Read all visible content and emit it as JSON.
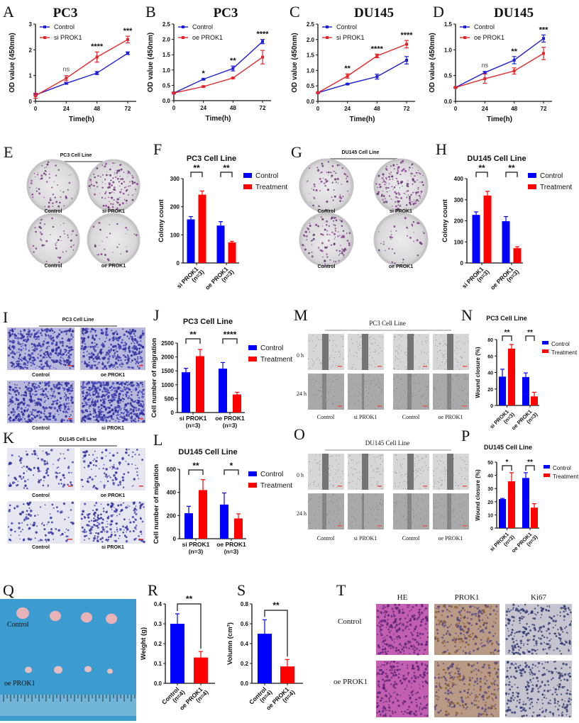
{
  "panel_letters": [
    "A",
    "B",
    "C",
    "D",
    "E",
    "F",
    "G",
    "H",
    "I",
    "J",
    "K",
    "L",
    "M",
    "N",
    "O",
    "P",
    "Q",
    "R",
    "S",
    "T"
  ],
  "colony_panels": [
    {
      "panel": "E",
      "title": "PC3 Cell Line",
      "labels": [
        "Control",
        "si PROK1",
        "Control",
        "oe PROK1"
      ]
    },
    {
      "panel": "G",
      "title": "DU145 Cell Line",
      "labels": [
        "Control",
        "si PROK1",
        "Control",
        "oe PROK1"
      ]
    }
  ],
  "transwell_panels": [
    {
      "panel": "I",
      "title": "PC3 Cell Line",
      "labels": [
        "Control",
        "oe PROK1",
        "Control",
        "si PROK1"
      ]
    },
    {
      "panel": "K",
      "title": "DU145 Cell Line",
      "labels": [
        "Control",
        "oe PROK1",
        "Control",
        "si PROK1"
      ]
    }
  ],
  "wound_panels": [
    {
      "panel": "M",
      "title": "PC3 Cell Line",
      "rows": [
        "0 h",
        "24 h"
      ],
      "columns": [
        "Control",
        "si PROK1",
        "Control",
        "oe PROK1"
      ]
    },
    {
      "panel": "O",
      "title": "DU145 Cell Line",
      "rows": [
        "0 h",
        "24 h"
      ],
      "columns": [
        "Control",
        "si PROK1",
        "Control",
        "oe PROK1"
      ]
    }
  ],
  "tumor_photo": {
    "panel": "Q",
    "rows": [
      "Control",
      "oe PROK1"
    ]
  },
  "histology": {
    "panel": "T",
    "columns": [
      "HE",
      "PROK1",
      "Ki67"
    ],
    "rows": [
      "Control",
      "oe PROK1"
    ]
  },
  "colors": {
    "control_line": "#1c1cd6",
    "treatment_line": "#e3262b",
    "control_bar": "#0000ff",
    "treatment_bar": "#ff0000"
  },
  "chart_data": [
    {
      "panel": "A",
      "type": "line",
      "title": "PC3",
      "xlabel": "Time(h)",
      "ylabel": "OD value (450nm)",
      "x": [
        0,
        24,
        48,
        72
      ],
      "ylim": [
        0,
        3
      ],
      "yticks": [
        "0",
        "1",
        "2",
        "3"
      ],
      "legend": "top-left",
      "series": [
        {
          "name": "Control",
          "color": "#1c1cd6",
          "values": [
            0.25,
            0.7,
            1.1,
            1.87
          ],
          "errors": [
            0.03,
            0.03,
            0.06,
            0.05
          ]
        },
        {
          "name": "si PROK1",
          "color": "#e3262b",
          "values": [
            0.22,
            0.9,
            1.72,
            2.4
          ],
          "errors": [
            0.1,
            0.1,
            0.2,
            0.13
          ]
        }
      ],
      "significance": [
        "",
        "ns",
        "****",
        "***"
      ]
    },
    {
      "panel": "B",
      "type": "line",
      "title": "PC3",
      "xlabel": "Time(h)",
      "ylabel": "OD value (450nm)",
      "x": [
        0,
        24,
        48,
        72
      ],
      "ylim": [
        0,
        2.5
      ],
      "yticks": [
        "0.0",
        "0.5",
        "1.0",
        "1.5",
        "2.0",
        "2.5"
      ],
      "legend": "top-left",
      "series": [
        {
          "name": "Control",
          "color": "#1c1cd6",
          "values": [
            0.25,
            0.7,
            1.05,
            1.93
          ],
          "errors": [
            0.03,
            0.02,
            0.08,
            0.07
          ]
        },
        {
          "name": "oe PROK1",
          "color": "#e3262b",
          "values": [
            0.25,
            0.46,
            0.74,
            1.42
          ],
          "errors": [
            0.02,
            0.02,
            0.02,
            0.22
          ]
        }
      ],
      "significance": [
        "",
        "*",
        "**",
        "****"
      ]
    },
    {
      "panel": "C",
      "type": "line",
      "title": "DU145",
      "xlabel": "Time(h)",
      "ylabel": "OD value (450nm)",
      "x": [
        0,
        24,
        48,
        72
      ],
      "ylim": [
        0,
        2.5
      ],
      "yticks": [
        "0.0",
        "0.5",
        "1.0",
        "1.5",
        "2.0",
        "2.5"
      ],
      "legend": "top-left",
      "series": [
        {
          "name": "Control",
          "color": "#1c1cd6",
          "values": [
            0.28,
            0.56,
            0.8,
            1.33
          ],
          "errors": [
            0.02,
            0.02,
            0.08,
            0.12
          ]
        },
        {
          "name": "si PROK1",
          "color": "#e3262b",
          "values": [
            0.28,
            0.82,
            1.47,
            1.85
          ],
          "errors": [
            0.02,
            0.07,
            0.06,
            0.12
          ]
        }
      ],
      "significance": [
        "",
        "**",
        "****",
        "****"
      ]
    },
    {
      "panel": "D",
      "type": "line",
      "title": "DU145",
      "xlabel": "Time(h)",
      "ylabel": "OD value (450nm)",
      "x": [
        0,
        24,
        48,
        72
      ],
      "ylim": [
        0,
        1.5
      ],
      "yticks": [
        "0.0",
        "0.5",
        "1.0",
        "1.5"
      ],
      "legend": "top-left",
      "series": [
        {
          "name": "Control",
          "color": "#1c1cd6",
          "values": [
            0.27,
            0.56,
            0.8,
            1.22
          ],
          "errors": [
            0.01,
            0.02,
            0.07,
            0.07
          ]
        },
        {
          "name": "oe PROK1",
          "color": "#e3262b",
          "values": [
            0.27,
            0.44,
            0.59,
            0.93
          ],
          "errors": [
            0.01,
            0.09,
            0.06,
            0.12
          ]
        }
      ],
      "significance": [
        "",
        "ns",
        "**",
        "***"
      ]
    },
    {
      "panel": "F",
      "type": "bar",
      "title": "PC3 Cell Line",
      "ylabel": "Colony count",
      "categories": [
        [
          "si PROK1",
          "(n=3)"
        ],
        [
          "oe PROK1",
          "(n=3)"
        ]
      ],
      "ylim": [
        0,
        300
      ],
      "yticks": [
        "0",
        "100",
        "200",
        "300"
      ],
      "legend": "right",
      "series": [
        {
          "name": "Control",
          "color": "#0000ff",
          "values": [
            155,
            133
          ],
          "errors": [
            10,
            14
          ]
        },
        {
          "name": "Treatment",
          "color": "#ff0000",
          "values": [
            243,
            73
          ],
          "errors": [
            13,
            4
          ]
        }
      ],
      "significance": [
        "**",
        "**"
      ]
    },
    {
      "panel": "H",
      "type": "bar",
      "title": "DU145 Cell Line",
      "ylabel": "Colony count",
      "categories": [
        [
          "si PROK1",
          "(n=3)"
        ],
        [
          "oe PROK1",
          "(n=3)"
        ]
      ],
      "ylim": [
        0,
        400
      ],
      "yticks": [
        "0",
        "100",
        "200",
        "300",
        "400"
      ],
      "legend": "right",
      "series": [
        {
          "name": "Control",
          "color": "#0000ff",
          "values": [
            228,
            198
          ],
          "errors": [
            14,
            22
          ]
        },
        {
          "name": "Treatment",
          "color": "#ff0000",
          "values": [
            320,
            70
          ],
          "errors": [
            20,
            7
          ]
        }
      ],
      "significance": [
        "**",
        "**"
      ]
    },
    {
      "panel": "J",
      "type": "bar",
      "title": "PC3 Cell Line",
      "ylabel": "Cell number of migration",
      "categories": [
        [
          "si PROK1",
          "(n=3)"
        ],
        [
          "oe PROK1",
          "(n=3)"
        ]
      ],
      "ylim": [
        0,
        2500
      ],
      "yticks": [
        "0",
        "500",
        "1000",
        "1500",
        "2000",
        "2500"
      ],
      "legend": "right",
      "series": [
        {
          "name": "Control",
          "color": "#0000ff",
          "values": [
            1450,
            1580
          ],
          "errors": [
            140,
            220
          ]
        },
        {
          "name": "Treatment",
          "color": "#ff0000",
          "values": [
            2030,
            650
          ],
          "errors": [
            240,
            80
          ]
        }
      ],
      "significance": [
        "**",
        "****"
      ]
    },
    {
      "panel": "L",
      "type": "bar",
      "title": "DU145 Cell Line",
      "ylabel": "Cell number of migration",
      "categories": [
        [
          "si PROK1",
          "(n=3)"
        ],
        [
          "oe PROK1",
          "(n=3)"
        ]
      ],
      "ylim": [
        0,
        600
      ],
      "yticks": [
        "0",
        "200",
        "400",
        "600"
      ],
      "legend": "right",
      "series": [
        {
          "name": "Control",
          "color": "#0000ff",
          "values": [
            220,
            295
          ],
          "errors": [
            60,
            100
          ]
        },
        {
          "name": "Treatment",
          "color": "#ff0000",
          "values": [
            420,
            175
          ],
          "errors": [
            90,
            40
          ]
        }
      ],
      "significance": [
        "**",
        "*"
      ]
    },
    {
      "panel": "N",
      "type": "bar",
      "title": "PC3 Cell Line",
      "ylabel": "Wound closure (%)",
      "categories": [
        [
          "si PROK1",
          "(n=3)"
        ],
        [
          "oe PROK1",
          "(n=3)"
        ]
      ],
      "ylim": [
        0,
        80
      ],
      "yticks": [
        "0",
        "20",
        "40",
        "60",
        "80"
      ],
      "legend": "right",
      "series": [
        {
          "name": "Control",
          "color": "#0000ff",
          "values": [
            35,
            34.5
          ],
          "errors": [
            9,
            5
          ]
        },
        {
          "name": "Treatment",
          "color": "#ff0000",
          "values": [
            69,
            11
          ],
          "errors": [
            5,
            5
          ]
        }
      ],
      "significance": [
        "**",
        "**"
      ]
    },
    {
      "panel": "P",
      "type": "bar",
      "title": "DU145 Cell Line",
      "ylabel": "Wound closure (%)",
      "categories": [
        [
          "si PROK1",
          "(n=3)"
        ],
        [
          "oe PROK1",
          "(n=3)"
        ]
      ],
      "ylim": [
        0,
        50
      ],
      "yticks": [
        "0",
        "10",
        "20",
        "30",
        "40",
        "50"
      ],
      "legend": "right",
      "series": [
        {
          "name": "Control",
          "color": "#0000ff",
          "values": [
            22,
            38
          ],
          "errors": [
            0.5,
            4
          ]
        },
        {
          "name": "Treatment",
          "color": "#ff0000",
          "values": [
            35.5,
            15.5
          ],
          "errors": [
            6.5,
            3
          ]
        }
      ],
      "significance": [
        "*",
        "**"
      ]
    },
    {
      "panel": "R",
      "type": "bar",
      "title": "",
      "ylabel": "Weight (g)",
      "categories": [
        [
          "Control",
          "(n=4)"
        ],
        [
          "oe PROK1",
          "(n=4)"
        ]
      ],
      "ylim": [
        0,
        0.4
      ],
      "yticks": [
        "0.0",
        "0.1",
        "0.2",
        "0.3",
        "0.4"
      ],
      "series": [
        {
          "values": [
            0.3,
            0.13
          ],
          "errors": [
            0.05,
            0.03
          ],
          "colors": [
            "#0000ff",
            "#ff0000"
          ]
        }
      ],
      "significance": [
        "**"
      ]
    },
    {
      "panel": "S",
      "type": "bar",
      "title": "",
      "ylabel": "Volumn (cm³)",
      "categories": [
        [
          "Control",
          "(n=4)"
        ],
        [
          "oe PROK1",
          "(n=4)"
        ]
      ],
      "ylim": [
        0,
        0.8
      ],
      "yticks": [
        "0.0",
        "0.2",
        "0.4",
        "0.6",
        "0.8"
      ],
      "series": [
        {
          "values": [
            0.5,
            0.17
          ],
          "errors": [
            0.14,
            0.07
          ],
          "colors": [
            "#0000ff",
            "#ff0000"
          ]
        }
      ],
      "significance": [
        "**"
      ]
    }
  ]
}
